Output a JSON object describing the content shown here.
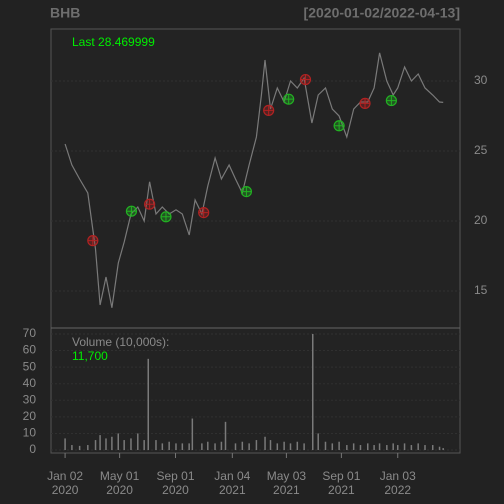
{
  "header": {
    "symbol": "BHB",
    "range": "[2020-01-02/2022-04-13]"
  },
  "chart_data": [
    {
      "type": "line",
      "last_label": "Last 28.469999",
      "color": "#7a7a7a",
      "grid": true,
      "xlim": [
        "2019-12-02",
        "2022-05-20"
      ],
      "ylim": [
        12.36,
        33.71
      ],
      "yticks": [
        15,
        20,
        25,
        30
      ],
      "x": [
        "2020-01-02",
        "2020-01-17",
        "2020-02-03",
        "2020-02-21",
        "2020-03-09",
        "2020-03-19",
        "2020-04-01",
        "2020-04-14",
        "2020-04-28",
        "2020-05-11",
        "2020-05-26",
        "2020-06-10",
        "2020-06-24",
        "2020-07-06",
        "2020-07-20",
        "2020-08-03",
        "2020-08-18",
        "2020-09-02",
        "2020-09-16",
        "2020-10-01",
        "2020-10-14",
        "2020-10-29",
        "2020-11-11",
        "2020-11-27",
        "2020-12-11",
        "2020-12-28",
        "2021-01-11",
        "2021-01-26",
        "2021-02-10",
        "2021-02-26",
        "2021-03-09",
        "2021-03-17",
        "2021-03-29",
        "2021-04-13",
        "2021-04-28",
        "2021-05-12",
        "2021-05-27",
        "2021-06-11",
        "2021-06-28",
        "2021-07-12",
        "2021-07-28",
        "2021-08-12",
        "2021-08-27",
        "2021-09-13",
        "2021-09-28",
        "2021-10-13",
        "2021-10-29",
        "2021-11-12",
        "2021-11-24",
        "2021-12-10",
        "2021-12-24",
        "2022-01-03",
        "2022-01-18",
        "2022-02-02",
        "2022-02-17",
        "2022-03-04",
        "2022-03-21",
        "2022-04-05",
        "2022-04-13"
      ],
      "values": [
        25.5,
        24,
        23,
        22,
        18,
        14,
        16,
        13.8,
        17,
        18.5,
        20.5,
        21,
        20,
        22.8,
        20.5,
        21,
        20.5,
        20.8,
        20.5,
        19,
        21.5,
        20.5,
        22.5,
        24.5,
        23,
        24,
        23,
        22,
        24,
        26,
        29,
        31.5,
        28,
        29.5,
        28.5,
        30,
        29.5,
        30.2,
        27,
        29,
        29.5,
        28,
        27.5,
        26,
        28,
        28.5,
        28.5,
        29.5,
        32,
        30,
        29,
        29.5,
        31,
        30,
        30.5,
        29.5,
        29,
        28.5,
        28.469999
      ],
      "signals": [
        {
          "color": "#b22222",
          "x": [
            "2020-03-03",
            "2020-07-06",
            "2020-11-02",
            "2021-03-25",
            "2021-06-14",
            "2021-10-23"
          ],
          "values": [
            18.6,
            21.2,
            20.6,
            27.9,
            30.1,
            28.4
          ]
        },
        {
          "color": "#22b222",
          "x": [
            "2020-05-27",
            "2020-08-11",
            "2021-02-04",
            "2021-05-08",
            "2021-08-27",
            "2021-12-20"
          ],
          "values": [
            20.7,
            20.3,
            22.1,
            28.7,
            26.8,
            28.6
          ]
        }
      ]
    },
    {
      "type": "bar",
      "title": "Volume (10,000s):",
      "last_label": "11,700",
      "color": "#7a7a7a",
      "xlim": [
        "2019-12-02",
        "2022-05-20"
      ],
      "ylim": [
        -1.8,
        73.6
      ],
      "yticks": [
        0,
        10,
        20,
        30,
        40,
        50,
        60,
        70
      ],
      "xticks": [
        {
          "value": "2020-01-02",
          "label": "Jan 02\n2020"
        },
        {
          "value": "2020-05-01",
          "label": "May 01\n2020"
        },
        {
          "value": "2020-09-01",
          "label": "Sep 01\n2020"
        },
        {
          "value": "2021-01-04",
          "label": "Jan 04\n2021"
        },
        {
          "value": "2021-05-03",
          "label": "May 03\n2021"
        },
        {
          "value": "2021-09-01",
          "label": "Sep 01\n2021"
        },
        {
          "value": "2022-01-03",
          "label": "Jan 03\n2022"
        }
      ],
      "x": [
        "2020-01-02",
        "2020-01-17",
        "2020-02-03",
        "2020-02-21",
        "2020-03-09",
        "2020-03-19",
        "2020-04-01",
        "2020-04-14",
        "2020-04-28",
        "2020-05-11",
        "2020-05-26",
        "2020-06-10",
        "2020-06-24",
        "2020-07-03",
        "2020-07-20",
        "2020-08-03",
        "2020-08-18",
        "2020-09-02",
        "2020-09-16",
        "2020-10-01",
        "2020-10-08",
        "2020-10-29",
        "2020-11-11",
        "2020-11-27",
        "2020-12-11",
        "2020-12-20",
        "2021-01-11",
        "2021-01-26",
        "2021-02-10",
        "2021-02-26",
        "2021-03-17",
        "2021-03-29",
        "2021-04-13",
        "2021-04-28",
        "2021-05-12",
        "2021-05-27",
        "2021-06-11",
        "2021-06-30",
        "2021-07-12",
        "2021-07-28",
        "2021-08-12",
        "2021-08-27",
        "2021-09-13",
        "2021-09-28",
        "2021-10-13",
        "2021-10-29",
        "2021-11-12",
        "2021-11-24",
        "2021-12-10",
        "2021-12-24",
        "2022-01-03",
        "2022-01-18",
        "2022-02-02",
        "2022-02-17",
        "2022-03-04",
        "2022-03-21",
        "2022-04-05",
        "2022-04-13"
      ],
      "values": [
        7,
        3,
        2.5,
        3,
        6,
        9,
        7,
        8,
        10,
        6,
        7,
        10,
        6,
        55,
        6,
        4,
        5,
        4,
        4,
        4,
        19,
        4,
        5,
        4,
        5,
        17,
        4,
        5,
        4,
        6,
        8,
        6,
        4,
        5,
        4,
        5,
        4,
        70,
        10,
        5,
        4,
        5,
        3,
        4,
        3,
        4,
        3,
        4,
        3,
        4,
        3,
        4,
        3,
        4,
        3,
        3,
        2,
        1.17
      ]
    }
  ]
}
